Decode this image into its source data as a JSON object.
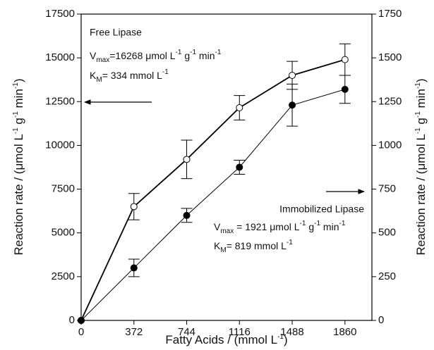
{
  "chart_data": {
    "type": "line",
    "x": [
      0,
      372,
      744,
      1116,
      1488,
      1860
    ],
    "xlim": [
      0,
      2050
    ],
    "xticks": [
      0,
      372,
      744,
      1116,
      1488,
      1860
    ],
    "ylim": [
      0,
      17500
    ],
    "yticks": [
      0,
      2500,
      5000,
      7500,
      10000,
      12500,
      15000,
      17500
    ],
    "y2lim": [
      0,
      1750
    ],
    "y2ticks": [
      0,
      250,
      500,
      750,
      1000,
      1250,
      1500,
      1750
    ],
    "x_label": [
      "Fatty Acids / (mmol L",
      "-1",
      ")"
    ],
    "y_label": [
      "Reaction rate / (μmol L",
      "-1",
      " g",
      "-1",
      " min",
      "-1",
      ")"
    ],
    "y2_label": [
      "Reaction rate / (μmol L",
      "-1",
      " g",
      "-1",
      " min",
      "-1",
      ")"
    ],
    "series": [
      {
        "name": "Free Lipase",
        "color": "#000000",
        "marker": "open",
        "values": [
          0,
          6500,
          9200,
          12150,
          14000,
          14900
        ],
        "errors": [
          null,
          750,
          1100,
          700,
          800,
          900
        ]
      },
      {
        "name": "Immobilized Lipase",
        "color": "#000000",
        "marker": "filled",
        "axis": "y2",
        "values": [
          0,
          300,
          600,
          875,
          1230,
          1320
        ],
        "errors": [
          null,
          50,
          40,
          40,
          120,
          80
        ]
      }
    ],
    "annotations": {
      "free_vmax": [
        "V",
        "max",
        "=16268 μmol L",
        "-1",
        " g",
        "-1",
        " min",
        "-1"
      ],
      "free_km": [
        "K",
        "M",
        "= 334 mmol L",
        "-1"
      ],
      "imm_vmax": [
        "V",
        "max",
        " = 1921 μmol L",
        "-1",
        " g",
        "-1",
        " min",
        "-1"
      ],
      "imm_km": [
        "K",
        "M",
        "= 819 mmol L",
        "-1"
      ]
    }
  }
}
